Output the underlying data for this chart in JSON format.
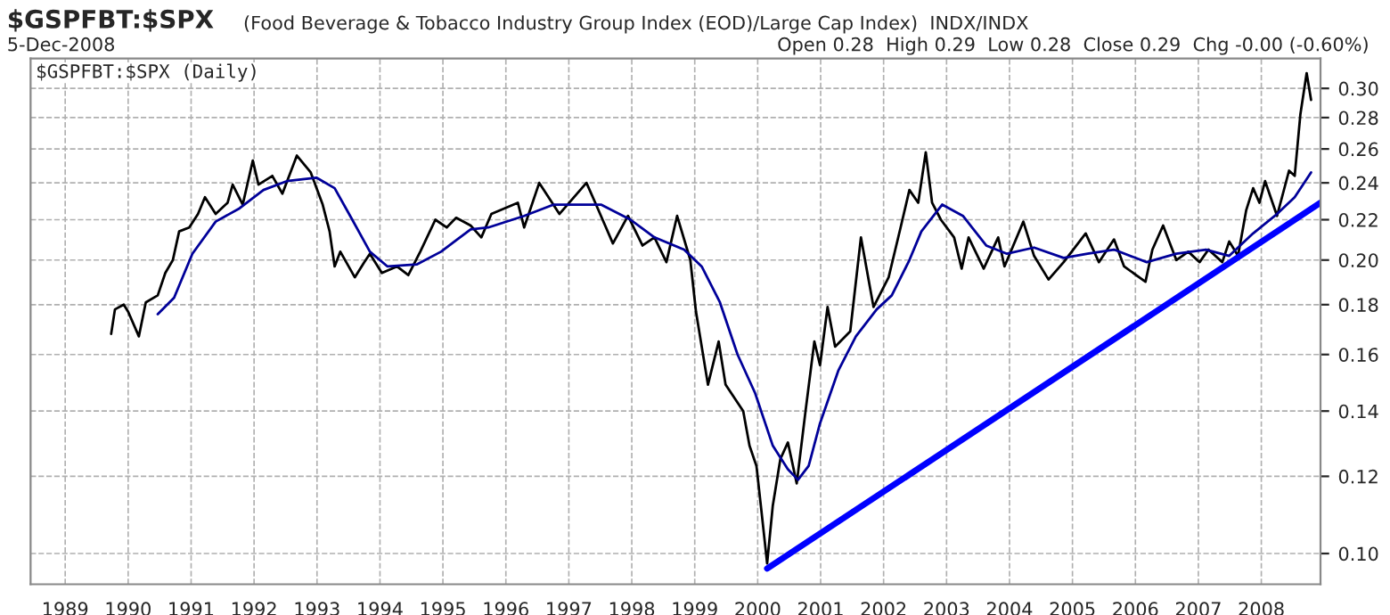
{
  "chart_data": {
    "type": "line",
    "title": "$GSPFBT:$SPX",
    "subtitle": "(Food Beverage & Tobacco Industry Group Index (EOD)/Large Cap Index)  INDX/INDX",
    "annotations": [
      "5-Dec-2008",
      "Open 0.28  High 0.29  Low 0.28  Close 0.29  Chg -0.00 (-0.60%)",
      "$GSPFBT:$SPX (Daily)"
    ],
    "log": "y",
    "grid": true,
    "legend": false,
    "xlim": [
      1988.45,
      2008.94
    ],
    "xticks": [
      1989,
      1990,
      1991,
      1992,
      1993,
      1994,
      1995,
      1996,
      1997,
      1998,
      1999,
      2000,
      2001,
      2002,
      2003,
      2004,
      2005,
      2006,
      2007,
      2008
    ],
    "ylim": [
      0.093,
      0.322
    ],
    "yticks": [
      {
        "value": 0.1,
        "label": "0.10"
      },
      0.12,
      0.14,
      0.16,
      0.18,
      {
        "value": 0.2,
        "label": "0.20"
      },
      0.22,
      0.24,
      0.26,
      0.28,
      {
        "value": 0.3,
        "label": "0.30"
      }
    ],
    "series": [
      {
        "color": "#000000",
        "x": [
          1989.73,
          1989.79,
          1989.93,
          1990.0,
          1990.17,
          1990.28,
          1990.47,
          1990.59,
          1990.71,
          1990.81,
          1990.97,
          1991.11,
          1991.22,
          1991.39,
          1991.58,
          1991.66,
          1991.82,
          1991.98,
          1992.07,
          1992.29,
          1992.45,
          1992.68,
          1992.9,
          1993.09,
          1993.2,
          1993.28,
          1993.37,
          1993.6,
          1993.75,
          1993.84,
          1994.03,
          1994.27,
          1994.45,
          1994.64,
          1994.88,
          1995.06,
          1995.21,
          1995.44,
          1995.61,
          1995.77,
          1996.19,
          1996.29,
          1996.53,
          1996.85,
          1997.28,
          1997.42,
          1997.7,
          1997.94,
          1998.17,
          1998.36,
          1998.55,
          1998.72,
          1998.93,
          1999.02,
          1999.21,
          1999.38,
          1999.49,
          1999.77,
          1999.87,
          1999.98,
          2000.07,
          2000.15,
          2000.24,
          2000.36,
          2000.48,
          2000.62,
          2000.76,
          2000.9,
          2000.99,
          2001.11,
          2001.23,
          2001.47,
          2001.64,
          2001.84,
          2002.08,
          2002.27,
          2002.41,
          2002.55,
          2002.67,
          2002.77,
          2002.91,
          2003.12,
          2003.24,
          2003.35,
          2003.59,
          2003.82,
          2003.92,
          2004.22,
          2004.39,
          2004.62,
          2004.86,
          2005.21,
          2005.42,
          2005.66,
          2005.82,
          2006.16,
          2006.27,
          2006.44,
          2006.65,
          2006.84,
          2007.02,
          2007.16,
          2007.38,
          2007.49,
          2007.63,
          2007.76,
          2007.87,
          2007.97,
          2008.06,
          2008.25,
          2008.44,
          2008.53,
          2008.62,
          2008.72,
          2008.79
        ],
        "values": [
          0.168,
          0.178,
          0.18,
          0.177,
          0.167,
          0.181,
          0.184,
          0.194,
          0.2,
          0.214,
          0.216,
          0.223,
          0.232,
          0.223,
          0.229,
          0.239,
          0.228,
          0.253,
          0.239,
          0.244,
          0.234,
          0.256,
          0.246,
          0.228,
          0.214,
          0.197,
          0.204,
          0.192,
          0.199,
          0.203,
          0.194,
          0.197,
          0.193,
          0.204,
          0.22,
          0.216,
          0.221,
          0.217,
          0.211,
          0.223,
          0.229,
          0.216,
          0.24,
          0.223,
          0.24,
          0.229,
          0.208,
          0.222,
          0.207,
          0.211,
          0.199,
          0.222,
          0.2,
          0.177,
          0.149,
          0.165,
          0.149,
          0.14,
          0.129,
          0.123,
          0.109,
          0.0977,
          0.112,
          0.125,
          0.13,
          0.118,
          0.14,
          0.165,
          0.156,
          0.179,
          0.163,
          0.169,
          0.211,
          0.179,
          0.192,
          0.216,
          0.236,
          0.229,
          0.258,
          0.229,
          0.22,
          0.211,
          0.196,
          0.211,
          0.196,
          0.211,
          0.197,
          0.219,
          0.202,
          0.191,
          0.199,
          0.213,
          0.199,
          0.21,
          0.197,
          0.19,
          0.205,
          0.217,
          0.2,
          0.204,
          0.199,
          0.205,
          0.199,
          0.209,
          0.202,
          0.225,
          0.237,
          0.229,
          0.241,
          0.222,
          0.247,
          0.244,
          0.282,
          0.311,
          0.292
        ]
      },
      {
        "color": "#000099",
        "x": [
          1990.47,
          1990.73,
          1991.02,
          1991.39,
          1991.77,
          1992.15,
          1992.52,
          1992.99,
          1993.28,
          1993.56,
          1993.84,
          1994.12,
          1994.59,
          1994.97,
          1995.44,
          1995.72,
          1996.29,
          1996.76,
          1997.51,
          1997.98,
          1998.36,
          1998.83,
          1999.11,
          1999.4,
          1999.68,
          1999.96,
          2000.24,
          2000.48,
          2000.64,
          2000.81,
          2000.99,
          2001.28,
          2001.56,
          2001.89,
          2002.13,
          2002.41,
          2002.6,
          2002.93,
          2003.26,
          2003.63,
          2003.96,
          2004.39,
          2004.86,
          2005.24,
          2005.66,
          2006.18,
          2006.65,
          2007.12,
          2007.49,
          2007.87,
          2008.25,
          2008.53,
          2008.79
        ],
        "values": [
          0.176,
          0.183,
          0.203,
          0.219,
          0.226,
          0.236,
          0.241,
          0.243,
          0.237,
          0.22,
          0.204,
          0.197,
          0.198,
          0.204,
          0.215,
          0.216,
          0.222,
          0.228,
          0.228,
          0.22,
          0.211,
          0.205,
          0.197,
          0.181,
          0.16,
          0.146,
          0.129,
          0.122,
          0.119,
          0.123,
          0.136,
          0.154,
          0.167,
          0.178,
          0.184,
          0.2,
          0.214,
          0.228,
          0.222,
          0.207,
          0.203,
          0.206,
          0.201,
          0.203,
          0.205,
          0.199,
          0.203,
          0.205,
          0.202,
          0.213,
          0.223,
          0.232,
          0.246
        ]
      },
      {
        "color": "#0000ff",
        "x": [
          2000.15,
          2008.94
        ],
        "values": [
          0.0965,
          0.229
        ]
      }
    ]
  }
}
